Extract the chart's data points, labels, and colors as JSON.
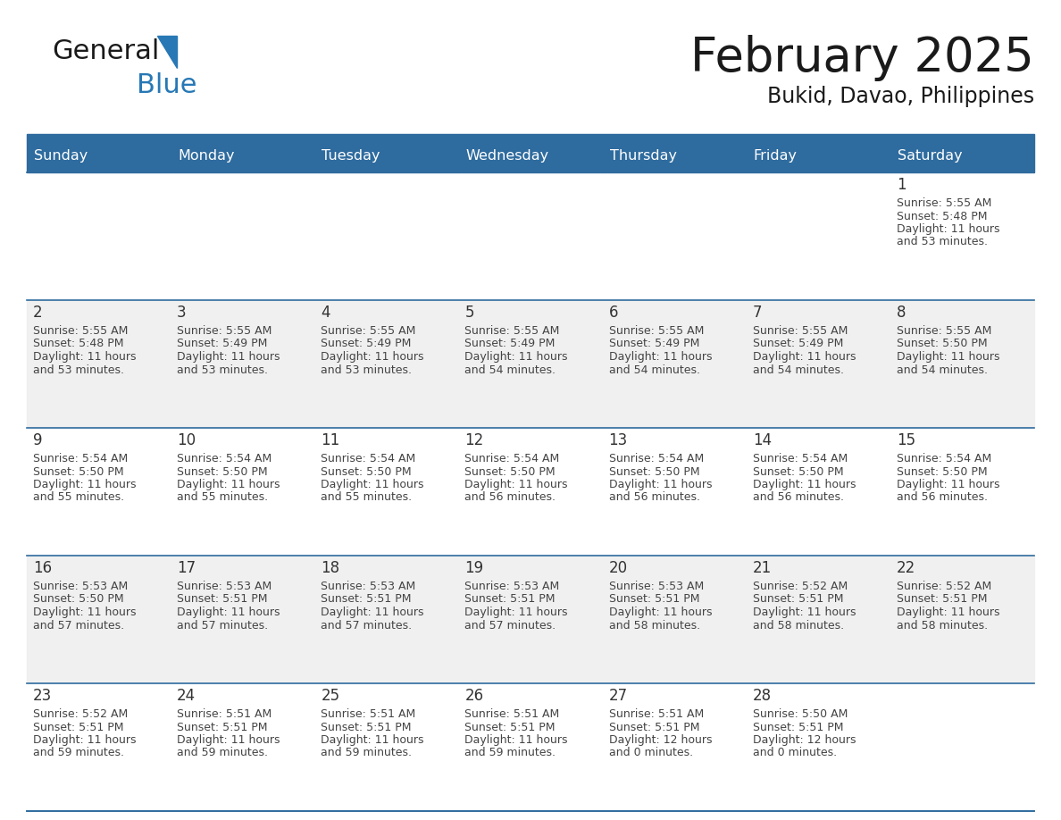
{
  "title": "February 2025",
  "subtitle": "Bukid, Davao, Philippines",
  "days_of_week": [
    "Sunday",
    "Monday",
    "Tuesday",
    "Wednesday",
    "Thursday",
    "Friday",
    "Saturday"
  ],
  "header_bg": "#2E6B9E",
  "header_text": "#FFFFFF",
  "cell_bg_white": "#FFFFFF",
  "cell_bg_gray": "#F0F0F0",
  "divider_color": "#2E6B9E",
  "text_color": "#444444",
  "day_num_color": "#333333",
  "logo_general_color": "#1a1a1a",
  "logo_blue_color": "#2778B5",
  "logo_triangle_color": "#2778B5",
  "title_color": "#1a1a1a",
  "subtitle_color": "#1a1a1a",
  "cal_data": [
    [
      null,
      null,
      null,
      null,
      null,
      null,
      {
        "day": 1,
        "sunrise": "5:55 AM",
        "sunset": "5:48 PM",
        "daylight": "11 hours and 53 minutes."
      }
    ],
    [
      {
        "day": 2,
        "sunrise": "5:55 AM",
        "sunset": "5:48 PM",
        "daylight": "11 hours and 53 minutes."
      },
      {
        "day": 3,
        "sunrise": "5:55 AM",
        "sunset": "5:49 PM",
        "daylight": "11 hours and 53 minutes."
      },
      {
        "day": 4,
        "sunrise": "5:55 AM",
        "sunset": "5:49 PM",
        "daylight": "11 hours and 53 minutes."
      },
      {
        "day": 5,
        "sunrise": "5:55 AM",
        "sunset": "5:49 PM",
        "daylight": "11 hours and 54 minutes."
      },
      {
        "day": 6,
        "sunrise": "5:55 AM",
        "sunset": "5:49 PM",
        "daylight": "11 hours and 54 minutes."
      },
      {
        "day": 7,
        "sunrise": "5:55 AM",
        "sunset": "5:49 PM",
        "daylight": "11 hours and 54 minutes."
      },
      {
        "day": 8,
        "sunrise": "5:55 AM",
        "sunset": "5:50 PM",
        "daylight": "11 hours and 54 minutes."
      }
    ],
    [
      {
        "day": 9,
        "sunrise": "5:54 AM",
        "sunset": "5:50 PM",
        "daylight": "11 hours and 55 minutes."
      },
      {
        "day": 10,
        "sunrise": "5:54 AM",
        "sunset": "5:50 PM",
        "daylight": "11 hours and 55 minutes."
      },
      {
        "day": 11,
        "sunrise": "5:54 AM",
        "sunset": "5:50 PM",
        "daylight": "11 hours and 55 minutes."
      },
      {
        "day": 12,
        "sunrise": "5:54 AM",
        "sunset": "5:50 PM",
        "daylight": "11 hours and 56 minutes."
      },
      {
        "day": 13,
        "sunrise": "5:54 AM",
        "sunset": "5:50 PM",
        "daylight": "11 hours and 56 minutes."
      },
      {
        "day": 14,
        "sunrise": "5:54 AM",
        "sunset": "5:50 PM",
        "daylight": "11 hours and 56 minutes."
      },
      {
        "day": 15,
        "sunrise": "5:54 AM",
        "sunset": "5:50 PM",
        "daylight": "11 hours and 56 minutes."
      }
    ],
    [
      {
        "day": 16,
        "sunrise": "5:53 AM",
        "sunset": "5:50 PM",
        "daylight": "11 hours and 57 minutes."
      },
      {
        "day": 17,
        "sunrise": "5:53 AM",
        "sunset": "5:51 PM",
        "daylight": "11 hours and 57 minutes."
      },
      {
        "day": 18,
        "sunrise": "5:53 AM",
        "sunset": "5:51 PM",
        "daylight": "11 hours and 57 minutes."
      },
      {
        "day": 19,
        "sunrise": "5:53 AM",
        "sunset": "5:51 PM",
        "daylight": "11 hours and 57 minutes."
      },
      {
        "day": 20,
        "sunrise": "5:53 AM",
        "sunset": "5:51 PM",
        "daylight": "11 hours and 58 minutes."
      },
      {
        "day": 21,
        "sunrise": "5:52 AM",
        "sunset": "5:51 PM",
        "daylight": "11 hours and 58 minutes."
      },
      {
        "day": 22,
        "sunrise": "5:52 AM",
        "sunset": "5:51 PM",
        "daylight": "11 hours and 58 minutes."
      }
    ],
    [
      {
        "day": 23,
        "sunrise": "5:52 AM",
        "sunset": "5:51 PM",
        "daylight": "11 hours and 59 minutes."
      },
      {
        "day": 24,
        "sunrise": "5:51 AM",
        "sunset": "5:51 PM",
        "daylight": "11 hours and 59 minutes."
      },
      {
        "day": 25,
        "sunrise": "5:51 AM",
        "sunset": "5:51 PM",
        "daylight": "11 hours and 59 minutes."
      },
      {
        "day": 26,
        "sunrise": "5:51 AM",
        "sunset": "5:51 PM",
        "daylight": "11 hours and 59 minutes."
      },
      {
        "day": 27,
        "sunrise": "5:51 AM",
        "sunset": "5:51 PM",
        "daylight": "12 hours and 0 minutes."
      },
      {
        "day": 28,
        "sunrise": "5:50 AM",
        "sunset": "5:51 PM",
        "daylight": "12 hours and 0 minutes."
      },
      null
    ]
  ],
  "figsize": [
    11.88,
    9.18
  ],
  "dpi": 100
}
